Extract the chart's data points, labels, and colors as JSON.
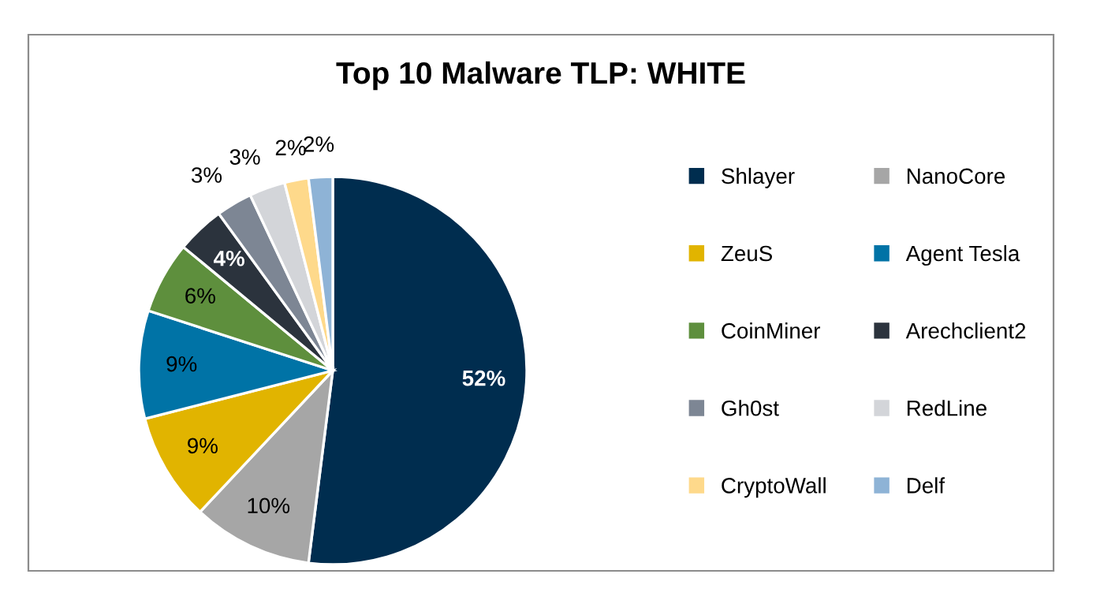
{
  "chart_data": {
    "type": "pie",
    "title": "Top 10 Malware TLP: WHITE",
    "categories": [
      "Shlayer",
      "NanoCore",
      "ZeuS",
      "Agent Tesla",
      "CoinMiner",
      "Arechclient2",
      "Gh0st",
      "RedLine",
      "CryptoWall",
      "Delf"
    ],
    "values": [
      52,
      10,
      9,
      9,
      6,
      4,
      3,
      3,
      2,
      2
    ],
    "colors": [
      "#002d4f",
      "#a6a6a6",
      "#e1b400",
      "#0073a6",
      "#5e8f3d",
      "#2b333d",
      "#7d8694",
      "#d3d5d9",
      "#fed98b",
      "#8eb3d6"
    ],
    "value_labels": [
      "52%",
      "10%",
      "9%",
      "9%",
      "6%",
      "4%",
      "3%",
      "3%",
      "2%",
      "2%"
    ],
    "legend": "right"
  }
}
